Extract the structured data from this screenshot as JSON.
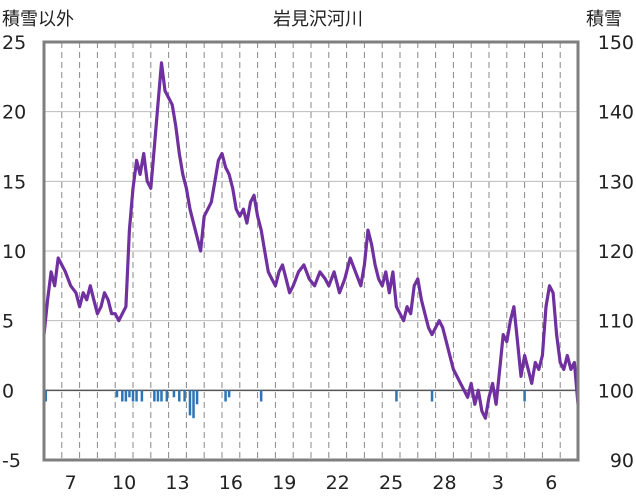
{
  "chart_data": {
    "type": "line",
    "title": "岩見沢河川",
    "left_axis_label": "積雪以外",
    "right_axis_label": "積雪",
    "y_left": {
      "min": -5,
      "max": 25,
      "ticks": [
        -5,
        0,
        5,
        10,
        15,
        20,
        25
      ]
    },
    "y_right": {
      "min": 90,
      "max": 150,
      "ticks": [
        90,
        100,
        110,
        120,
        130,
        140,
        150
      ]
    },
    "x_ticks": [
      "7",
      "10",
      "13",
      "16",
      "19",
      "22",
      "25",
      "28",
      "3",
      "6"
    ],
    "x_tick_days": [
      1.5,
      4.5,
      7.5,
      10.5,
      13.5,
      16.5,
      19.5,
      22.5,
      25.5,
      28.5
    ],
    "x_range": [
      0,
      30
    ],
    "grid": {
      "vertical": "dashed",
      "horizontal": "solid"
    },
    "series": [
      {
        "axis": "left",
        "color": "#7030a0",
        "points": [
          [
            0.0,
            4.0
          ],
          [
            0.2,
            6.5
          ],
          [
            0.4,
            8.5
          ],
          [
            0.6,
            7.5
          ],
          [
            0.8,
            9.5
          ],
          [
            1.0,
            9.0
          ],
          [
            1.2,
            8.5
          ],
          [
            1.5,
            7.5
          ],
          [
            1.8,
            7.0
          ],
          [
            2.0,
            6.0
          ],
          [
            2.2,
            7.0
          ],
          [
            2.4,
            6.5
          ],
          [
            2.6,
            7.5
          ],
          [
            2.8,
            6.5
          ],
          [
            3.0,
            5.5
          ],
          [
            3.2,
            6.0
          ],
          [
            3.4,
            7.0
          ],
          [
            3.6,
            6.5
          ],
          [
            3.8,
            5.5
          ],
          [
            4.0,
            5.5
          ],
          [
            4.2,
            5.0
          ],
          [
            4.4,
            5.5
          ],
          [
            4.6,
            6.0
          ],
          [
            4.8,
            11.5
          ],
          [
            5.0,
            14.5
          ],
          [
            5.2,
            16.5
          ],
          [
            5.4,
            15.5
          ],
          [
            5.6,
            17.0
          ],
          [
            5.8,
            15.0
          ],
          [
            6.0,
            14.5
          ],
          [
            6.2,
            17.5
          ],
          [
            6.4,
            20.5
          ],
          [
            6.6,
            23.5
          ],
          [
            6.8,
            21.5
          ],
          [
            7.0,
            21.0
          ],
          [
            7.2,
            20.5
          ],
          [
            7.4,
            19.0
          ],
          [
            7.6,
            17.0
          ],
          [
            7.8,
            15.5
          ],
          [
            8.0,
            14.5
          ],
          [
            8.2,
            13.0
          ],
          [
            8.4,
            12.0
          ],
          [
            8.6,
            11.0
          ],
          [
            8.8,
            10.0
          ],
          [
            9.0,
            12.5
          ],
          [
            9.2,
            13.0
          ],
          [
            9.4,
            13.5
          ],
          [
            9.6,
            15.0
          ],
          [
            9.8,
            16.5
          ],
          [
            10.0,
            17.0
          ],
          [
            10.2,
            16.0
          ],
          [
            10.4,
            15.5
          ],
          [
            10.6,
            14.5
          ],
          [
            10.8,
            13.0
          ],
          [
            11.0,
            12.5
          ],
          [
            11.2,
            13.0
          ],
          [
            11.4,
            12.0
          ],
          [
            11.6,
            13.5
          ],
          [
            11.8,
            14.0
          ],
          [
            12.0,
            12.5
          ],
          [
            12.2,
            11.5
          ],
          [
            12.4,
            10.0
          ],
          [
            12.6,
            8.5
          ],
          [
            12.8,
            8.0
          ],
          [
            13.0,
            7.5
          ],
          [
            13.2,
            8.5
          ],
          [
            13.4,
            9.0
          ],
          [
            13.6,
            8.0
          ],
          [
            13.8,
            7.0
          ],
          [
            14.0,
            7.5
          ],
          [
            14.3,
            8.5
          ],
          [
            14.6,
            9.0
          ],
          [
            14.9,
            8.0
          ],
          [
            15.2,
            7.5
          ],
          [
            15.5,
            8.5
          ],
          [
            15.8,
            8.0
          ],
          [
            16.0,
            7.5
          ],
          [
            16.3,
            8.5
          ],
          [
            16.6,
            7.0
          ],
          [
            16.9,
            8.0
          ],
          [
            17.2,
            9.5
          ],
          [
            17.5,
            8.5
          ],
          [
            17.8,
            7.5
          ],
          [
            18.0,
            9.0
          ],
          [
            18.2,
            11.5
          ],
          [
            18.4,
            10.5
          ],
          [
            18.6,
            9.0
          ],
          [
            18.8,
            8.0
          ],
          [
            19.0,
            7.5
          ],
          [
            19.2,
            8.5
          ],
          [
            19.4,
            7.0
          ],
          [
            19.6,
            8.5
          ],
          [
            19.8,
            6.0
          ],
          [
            20.0,
            5.5
          ],
          [
            20.2,
            5.0
          ],
          [
            20.4,
            6.0
          ],
          [
            20.6,
            5.5
          ],
          [
            20.8,
            7.5
          ],
          [
            21.0,
            8.0
          ],
          [
            21.2,
            6.5
          ],
          [
            21.4,
            5.5
          ],
          [
            21.6,
            4.5
          ],
          [
            21.8,
            4.0
          ],
          [
            22.0,
            4.5
          ],
          [
            22.2,
            5.0
          ],
          [
            22.4,
            4.5
          ],
          [
            22.6,
            3.5
          ],
          [
            22.8,
            2.5
          ],
          [
            23.0,
            1.5
          ],
          [
            23.2,
            1.0
          ],
          [
            23.4,
            0.5
          ],
          [
            23.6,
            0.0
          ],
          [
            23.8,
            -0.5
          ],
          [
            24.0,
            0.5
          ],
          [
            24.2,
            -1.0
          ],
          [
            24.4,
            0.0
          ],
          [
            24.6,
            -1.5
          ],
          [
            24.8,
            -2.0
          ],
          [
            25.0,
            -0.5
          ],
          [
            25.2,
            0.5
          ],
          [
            25.4,
            -1.0
          ],
          [
            25.6,
            1.5
          ],
          [
            25.8,
            4.0
          ],
          [
            26.0,
            3.5
          ],
          [
            26.2,
            5.0
          ],
          [
            26.4,
            6.0
          ],
          [
            26.6,
            3.5
          ],
          [
            26.8,
            1.0
          ],
          [
            27.0,
            2.5
          ],
          [
            27.2,
            1.5
          ],
          [
            27.4,
            0.5
          ],
          [
            27.6,
            2.0
          ],
          [
            27.8,
            1.5
          ],
          [
            28.0,
            2.5
          ],
          [
            28.2,
            6.0
          ],
          [
            28.4,
            7.5
          ],
          [
            28.6,
            7.0
          ],
          [
            28.8,
            4.0
          ],
          [
            29.0,
            2.0
          ],
          [
            29.2,
            1.5
          ],
          [
            29.4,
            2.5
          ],
          [
            29.6,
            1.5
          ],
          [
            29.8,
            2.0
          ],
          [
            30.0,
            -1.0
          ]
        ]
      }
    ],
    "bars": {
      "axis": "left",
      "color": "#2e75b6",
      "items": [
        [
          0.1,
          -0.8
        ],
        [
          4.1,
          -0.5
        ],
        [
          4.4,
          -0.8
        ],
        [
          4.6,
          -0.8
        ],
        [
          4.8,
          -0.5
        ],
        [
          5.0,
          -0.8
        ],
        [
          5.2,
          -0.8
        ],
        [
          5.5,
          -0.8
        ],
        [
          6.2,
          -0.8
        ],
        [
          6.4,
          -0.8
        ],
        [
          6.6,
          -0.8
        ],
        [
          6.9,
          -0.8
        ],
        [
          7.3,
          -0.5
        ],
        [
          7.6,
          -0.8
        ],
        [
          7.9,
          -0.8
        ],
        [
          8.2,
          -1.8
        ],
        [
          8.4,
          -2.0
        ],
        [
          8.6,
          -1.0
        ],
        [
          10.2,
          -0.8
        ],
        [
          10.4,
          -0.5
        ],
        [
          12.2,
          -0.8
        ],
        [
          19.8,
          -0.8
        ],
        [
          21.8,
          -0.8
        ],
        [
          27.0,
          -0.8
        ]
      ]
    }
  }
}
